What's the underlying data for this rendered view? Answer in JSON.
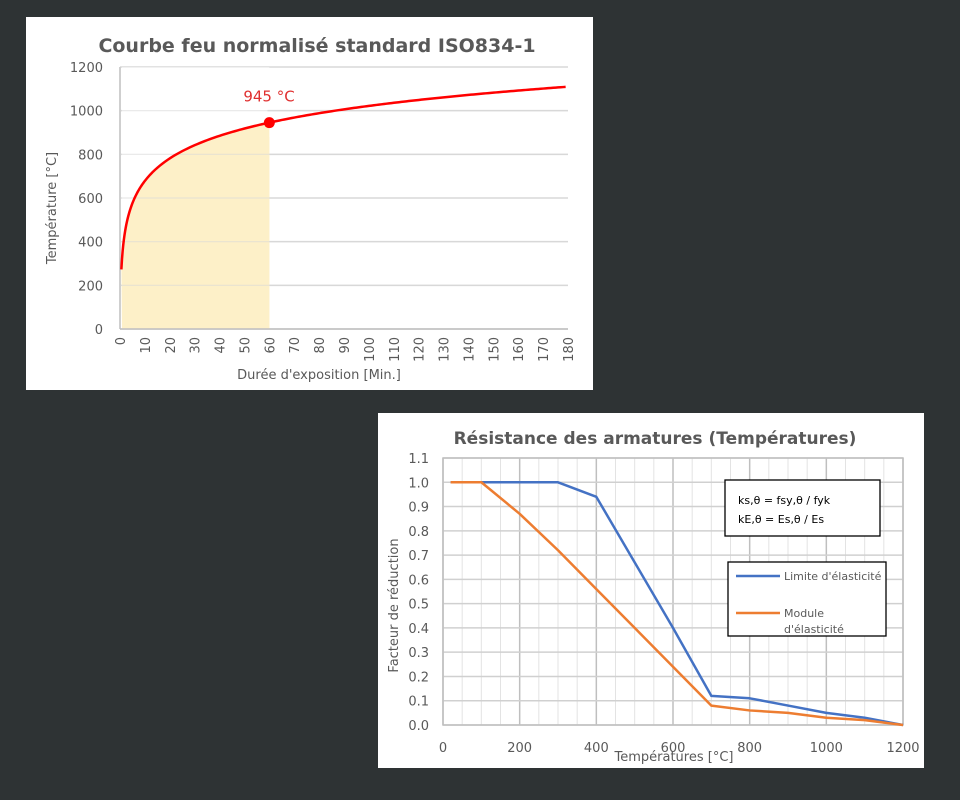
{
  "chart_data": [
    {
      "type": "area",
      "title": "Courbe feu normalisé standard ISO834-1",
      "xlabel": "Durée d'exposition [Min.]",
      "ylabel": "Température [°C]",
      "xlim": [
        0,
        180
      ],
      "ylim": [
        0,
        1200
      ],
      "x_ticks": [
        "0",
        "10",
        "20",
        "30",
        "40",
        "50",
        "60",
        "70",
        "80",
        "90",
        "100",
        "110",
        "120",
        "130",
        "140",
        "150",
        "160",
        "170",
        "180"
      ],
      "y_ticks": [
        "0",
        "200",
        "400",
        "600",
        "800",
        "1000",
        "1200"
      ],
      "grid": "horizontal",
      "series": [
        {
          "name": "ISO834",
          "color": "#ff0000",
          "x": [
            0.5,
            1,
            2,
            5,
            10,
            15,
            20,
            30,
            40,
            50,
            60,
            70,
            80,
            90,
            100,
            120,
            140,
            160,
            180
          ],
          "values": [
            349,
            445,
            544,
            659,
            781,
            822,
            842,
            889,
            921,
            925,
            945,
            962,
            976,
            986,
            996,
            1015,
            1037,
            1082,
            1110
          ]
        }
      ],
      "shaded_region": {
        "x_from": 0,
        "x_to": 60,
        "color": "#fdf0c8"
      },
      "annotation": {
        "x": 60,
        "y": 945,
        "label": "945 °C",
        "color": "#e03030"
      }
    },
    {
      "type": "line",
      "title": "Résistance des armatures (Températures)",
      "xlabel": "Températures [°C]",
      "ylabel": "Facteur de réduction",
      "xlim": [
        0,
        1200
      ],
      "ylim": [
        0,
        1.1
      ],
      "x_ticks": [
        "0",
        "200",
        "400",
        "600",
        "800",
        "1000",
        "1200"
      ],
      "y_ticks": [
        "0.0",
        "0.1",
        "0.2",
        "0.3",
        "0.4",
        "0.5",
        "0.6",
        "0.7",
        "0.8",
        "0.9",
        "1.0",
        "1.1"
      ],
      "grid": "both",
      "series": [
        {
          "name": "Limite d'élasticité",
          "color": "#4472c4",
          "x": [
            20,
            100,
            200,
            300,
            400,
            500,
            600,
            700,
            800,
            900,
            1000,
            1100,
            1200
          ],
          "values": [
            1.0,
            1.0,
            1.0,
            1.0,
            0.94,
            0.67,
            0.4,
            0.12,
            0.11,
            0.08,
            0.05,
            0.03,
            0.0
          ]
        },
        {
          "name": "Module d'élasticité",
          "color": "#ed7d31",
          "x": [
            20,
            100,
            200,
            300,
            400,
            500,
            600,
            700,
            800,
            900,
            1000,
            1100,
            1200
          ],
          "values": [
            1.0,
            1.0,
            0.87,
            0.72,
            0.56,
            0.4,
            0.24,
            0.08,
            0.06,
            0.05,
            0.03,
            0.02,
            0.0
          ]
        }
      ],
      "formula_box": [
        "ks,θ = fsy,θ / fyk",
        "kE,θ = Es,θ / Es"
      ],
      "legend": {
        "position": "right-inside",
        "entries": [
          {
            "label_lines": [
              "Limite d'élasticité"
            ],
            "color": "#4472c4"
          },
          {
            "label_lines": [
              "Module",
              "d'élasticité"
            ],
            "color": "#ed7d31"
          }
        ]
      }
    }
  ]
}
